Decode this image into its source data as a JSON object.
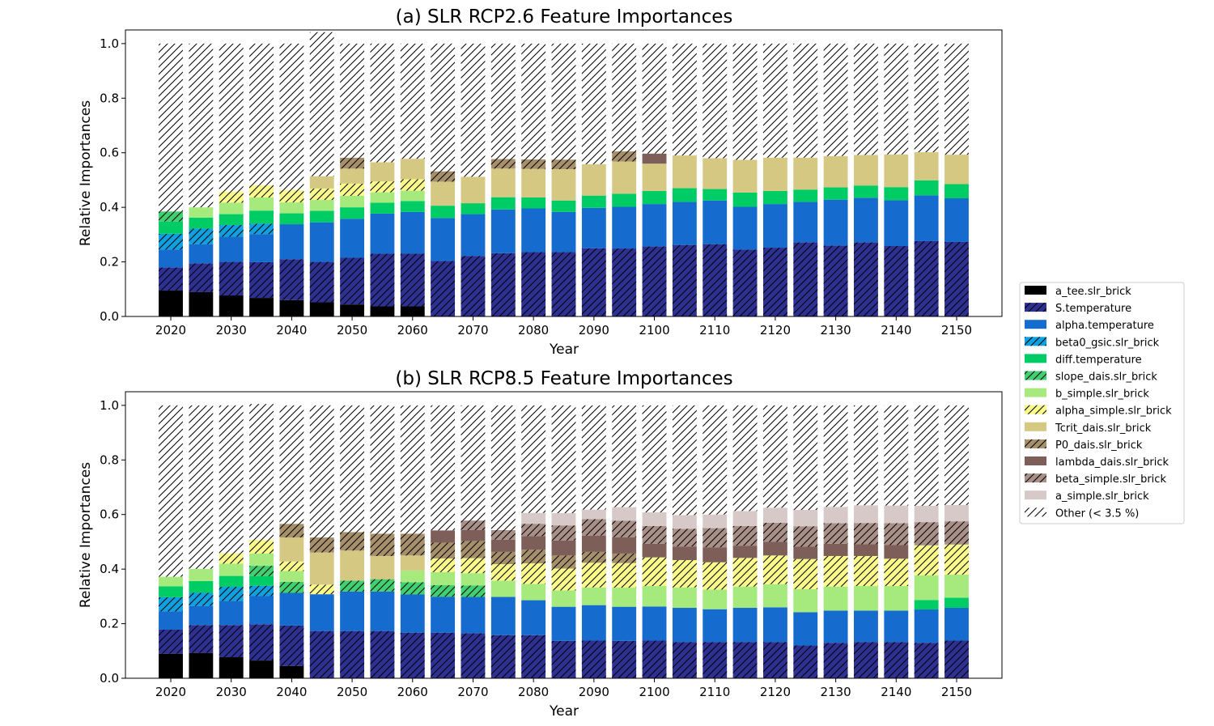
{
  "legend": {
    "placement": "center-right",
    "hatch_color": "#000000",
    "entries": [
      {
        "key": "a_tee",
        "label": "a_tee.slr_brick",
        "color": "#000000",
        "hatch": false
      },
      {
        "key": "S_temp",
        "label": "S.temperature",
        "color": "#2e3192",
        "hatch": true
      },
      {
        "key": "alpha_temp",
        "label": "alpha.temperature",
        "color": "#166cce",
        "hatch": false
      },
      {
        "key": "beta0_gsic",
        "label": "beta0_gsic.slr_brick",
        "color": "#10a0e0",
        "hatch": true
      },
      {
        "key": "diff_temp",
        "label": "diff.temperature",
        "color": "#00cc66",
        "hatch": false
      },
      {
        "key": "slope_dais",
        "label": "slope_dais.slr_brick",
        "color": "#40d070",
        "hatch": true
      },
      {
        "key": "b_simple",
        "label": "b_simple.slr_brick",
        "color": "#a6ea7e",
        "hatch": false
      },
      {
        "key": "alpha_simple",
        "label": "alpha_simple.slr_brick",
        "color": "#fbfb8a",
        "hatch": true
      },
      {
        "key": "Tcrit_dais",
        "label": "Tcrit_dais.slr_brick",
        "color": "#d4c882",
        "hatch": false
      },
      {
        "key": "P0_dais",
        "label": "P0_dais.slr_brick",
        "color": "#a6906a",
        "hatch": true
      },
      {
        "key": "lambda_dais",
        "label": "lambda_dais.slr_brick",
        "color": "#7e5e58",
        "hatch": false
      },
      {
        "key": "beta_simple",
        "label": "beta_simple.slr_brick",
        "color": "#a89088",
        "hatch": true
      },
      {
        "key": "a_simple",
        "label": "a_simple.slr_brick",
        "color": "#d6c9c8",
        "hatch": false
      },
      {
        "key": "other",
        "label": "Other (< 3.5 %)",
        "color": "#ffffff",
        "hatch": true
      }
    ]
  },
  "chart_data": [
    {
      "type": "bar",
      "stacked": true,
      "title": "(a) SLR RCP2.6 Feature Importances",
      "xlabel": "Year",
      "ylabel": "Relative Importances",
      "ylim": [
        0,
        1.05
      ],
      "xlim": [
        2012.5,
        2157.5
      ],
      "yticks": [
        0.0,
        0.2,
        0.4,
        0.6,
        0.8,
        1.0
      ],
      "ytick_labels": [
        "0.0",
        "0.2",
        "0.4",
        "0.6",
        "0.8",
        "1.0"
      ],
      "xticks": [
        2020,
        2030,
        2040,
        2050,
        2060,
        2070,
        2080,
        2090,
        2100,
        2110,
        2120,
        2130,
        2140,
        2150
      ],
      "xtick_labels": [
        "2020",
        "2030",
        "2040",
        "2050",
        "2060",
        "2070",
        "2080",
        "2090",
        "2100",
        "2110",
        "2120",
        "2130",
        "2140",
        "2150"
      ],
      "bar_width_years": 4,
      "grid": false,
      "categories": [
        2020,
        2025,
        2030,
        2035,
        2040,
        2045,
        2050,
        2055,
        2060,
        2065,
        2070,
        2075,
        2080,
        2085,
        2090,
        2095,
        2100,
        2105,
        2110,
        2115,
        2120,
        2125,
        2130,
        2135,
        2140,
        2145,
        2150
      ],
      "series": [
        {
          "key": "a_tee",
          "values": [
            0.095,
            0.09,
            0.077,
            0.068,
            0.06,
            0.052,
            0.044,
            0.037,
            0.037,
            0,
            0,
            0,
            0,
            0,
            0,
            0,
            0,
            0,
            0,
            0,
            0,
            0,
            0,
            0,
            0,
            0,
            0
          ]
        },
        {
          "key": "S_temp",
          "values": [
            0.085,
            0.105,
            0.123,
            0.131,
            0.15,
            0.148,
            0.171,
            0.193,
            0.193,
            0.203,
            0.222,
            0.232,
            0.236,
            0.236,
            0.25,
            0.249,
            0.257,
            0.262,
            0.265,
            0.245,
            0.252,
            0.272,
            0.26,
            0.272,
            0.258,
            0.276,
            0.273
          ]
        },
        {
          "key": "alpha_temp",
          "values": [
            0.065,
            0.07,
            0.092,
            0.103,
            0.128,
            0.145,
            0.143,
            0.147,
            0.153,
            0.158,
            0.153,
            0.16,
            0.16,
            0.147,
            0.148,
            0.153,
            0.155,
            0.158,
            0.16,
            0.157,
            0.16,
            0.148,
            0.168,
            0.163,
            0.168,
            0.168,
            0.16
          ]
        },
        {
          "key": "beta0_gsic",
          "values": [
            0.058,
            0.057,
            0.043,
            0.038,
            0,
            0,
            0,
            0,
            0,
            0,
            0,
            0,
            0,
            0,
            0,
            0,
            0,
            0,
            0,
            0,
            0,
            0,
            0,
            0,
            0,
            0,
            0
          ]
        },
        {
          "key": "diff_temp",
          "values": [
            0.045,
            0.04,
            0.04,
            0.048,
            0.04,
            0.042,
            0.042,
            0.04,
            0.04,
            0.045,
            0.04,
            0.045,
            0.04,
            0.042,
            0.045,
            0.048,
            0.048,
            0.05,
            0.042,
            0.052,
            0.048,
            0.045,
            0.045,
            0.045,
            0.048,
            0.055,
            0.052
          ]
        },
        {
          "key": "slope_dais",
          "values": [
            0.037,
            0,
            0,
            0,
            0,
            0,
            0,
            0,
            0,
            0,
            0,
            0,
            0,
            0,
            0,
            0,
            0,
            0,
            0,
            0,
            0,
            0,
            0,
            0,
            0,
            0,
            0
          ]
        },
        {
          "key": "b_simple",
          "values": [
            0,
            0.038,
            0.042,
            0.048,
            0.04,
            0.04,
            0.042,
            0.038,
            0.038,
            0,
            0,
            0,
            0,
            0,
            0,
            0,
            0,
            0,
            0,
            0,
            0,
            0,
            0,
            0,
            0,
            0,
            0
          ]
        },
        {
          "key": "alpha_simple",
          "values": [
            0,
            0,
            0.04,
            0.045,
            0.045,
            0.042,
            0.045,
            0.04,
            0.042,
            0,
            0,
            0,
            0,
            0,
            0,
            0,
            0,
            0,
            0,
            0,
            0,
            0,
            0,
            0,
            0,
            0,
            0
          ]
        },
        {
          "key": "Tcrit_dais",
          "values": [
            0,
            0,
            0,
            0,
            0,
            0.045,
            0.055,
            0.07,
            0.075,
            0.088,
            0.097,
            0.105,
            0.105,
            0.115,
            0.115,
            0.118,
            0.1,
            0.12,
            0.113,
            0.12,
            0.122,
            0.117,
            0.115,
            0.112,
            0.12,
            0.103,
            0.108
          ]
        },
        {
          "key": "P0_dais",
          "values": [
            0,
            0,
            0,
            0,
            0,
            0,
            0.04,
            0,
            0,
            0.038,
            0,
            0.035,
            0.035,
            0.035,
            0,
            0.037,
            0,
            0,
            0,
            0,
            0,
            0,
            0,
            0,
            0,
            0,
            0
          ]
        },
        {
          "key": "lambda_dais",
          "values": [
            0,
            0,
            0,
            0,
            0,
            0,
            0,
            0,
            0,
            0,
            0,
            0,
            0,
            0,
            0,
            0,
            0.037,
            0,
            0,
            0,
            0,
            0,
            0,
            0,
            0,
            0,
            0
          ]
        },
        {
          "key": "other",
          "values": [
            0.615,
            0.6,
            0.543,
            0.519,
            0.537,
            0.528,
            0.418,
            0.435,
            0.422,
            0.468,
            0.488,
            0.423,
            0.424,
            0.425,
            0.442,
            0.395,
            0.403,
            0.41,
            0.42,
            0.426,
            0.418,
            0.418,
            0.412,
            0.408,
            0.406,
            0.398,
            0.407
          ]
        }
      ]
    },
    {
      "type": "bar",
      "stacked": true,
      "title": "(b) SLR RCP8.5 Feature Importances",
      "xlabel": "Year",
      "ylabel": "Relative Importances",
      "ylim": [
        0,
        1.05
      ],
      "xlim": [
        2012.5,
        2157.5
      ],
      "yticks": [
        0.0,
        0.2,
        0.4,
        0.6,
        0.8,
        1.0
      ],
      "ytick_labels": [
        "0.0",
        "0.2",
        "0.4",
        "0.6",
        "0.8",
        "1.0"
      ],
      "xticks": [
        2020,
        2030,
        2040,
        2050,
        2060,
        2070,
        2080,
        2090,
        2100,
        2110,
        2120,
        2130,
        2140,
        2150
      ],
      "xtick_labels": [
        "2020",
        "2030",
        "2040",
        "2050",
        "2060",
        "2070",
        "2080",
        "2090",
        "2100",
        "2110",
        "2120",
        "2130",
        "2140",
        "2150"
      ],
      "bar_width_years": 4,
      "grid": false,
      "categories": [
        2020,
        2025,
        2030,
        2035,
        2040,
        2045,
        2050,
        2055,
        2060,
        2065,
        2070,
        2075,
        2080,
        2085,
        2090,
        2095,
        2100,
        2105,
        2110,
        2115,
        2120,
        2125,
        2130,
        2135,
        2140,
        2145,
        2150
      ],
      "series": [
        {
          "key": "a_tee",
          "values": [
            0.09,
            0.093,
            0.077,
            0.065,
            0.045,
            0,
            0,
            0,
            0,
            0,
            0,
            0,
            0,
            0,
            0,
            0,
            0,
            0,
            0,
            0,
            0,
            0,
            0,
            0,
            0,
            0,
            0
          ]
        },
        {
          "key": "S_temp",
          "values": [
            0.088,
            0.102,
            0.118,
            0.133,
            0.148,
            0.173,
            0.173,
            0.173,
            0.167,
            0.167,
            0.165,
            0.158,
            0.158,
            0.137,
            0.138,
            0.137,
            0.138,
            0.133,
            0.133,
            0.133,
            0.133,
            0.12,
            0.13,
            0.133,
            0.133,
            0.13,
            0.138
          ]
        },
        {
          "key": "alpha_temp",
          "values": [
            0.067,
            0.07,
            0.088,
            0.103,
            0.12,
            0.135,
            0.145,
            0.145,
            0.14,
            0.132,
            0.133,
            0.14,
            0.128,
            0.125,
            0.13,
            0.125,
            0.125,
            0.125,
            0.12,
            0.125,
            0.127,
            0.122,
            0.118,
            0.115,
            0.115,
            0.122,
            0.12
          ]
        },
        {
          "key": "beta0_gsic",
          "values": [
            0.052,
            0.048,
            0.052,
            0.038,
            0,
            0,
            0,
            0,
            0,
            0,
            0,
            0,
            0,
            0,
            0,
            0,
            0,
            0,
            0,
            0,
            0,
            0,
            0,
            0,
            0,
            0,
            0
          ]
        },
        {
          "key": "diff_temp",
          "values": [
            0.04,
            0.043,
            0.04,
            0.035,
            0,
            0,
            0,
            0,
            0,
            0,
            0,
            0,
            0,
            0,
            0,
            0,
            0,
            0,
            0,
            0,
            0,
            0,
            0,
            0,
            0,
            0.035,
            0.037
          ]
        },
        {
          "key": "slope_dais",
          "values": [
            0,
            0,
            0,
            0.038,
            0.04,
            0,
            0.04,
            0.045,
            0.045,
            0.042,
            0.042,
            0,
            0,
            0,
            0,
            0,
            0,
            0,
            0,
            0,
            0,
            0,
            0,
            0,
            0,
            0,
            0
          ]
        },
        {
          "key": "b_simple",
          "values": [
            0.035,
            0.045,
            0.045,
            0.045,
            0.04,
            0,
            0,
            0,
            0.043,
            0.048,
            0.045,
            0.06,
            0.06,
            0.06,
            0.065,
            0.07,
            0.075,
            0.075,
            0.072,
            0.078,
            0.085,
            0.085,
            0.088,
            0.09,
            0.09,
            0.09,
            0.085
          ]
        },
        {
          "key": "alpha_simple",
          "values": [
            0,
            0,
            0.038,
            0.05,
            0.035,
            0.035,
            0,
            0,
            0,
            0.05,
            0.055,
            0.06,
            0.075,
            0.08,
            0.09,
            0.09,
            0.105,
            0.1,
            0.1,
            0.105,
            0.105,
            0.11,
            0.112,
            0.11,
            0.1,
            0.11,
            0.11
          ]
        },
        {
          "key": "Tcrit_dais",
          "values": [
            0,
            0,
            0,
            0,
            0.088,
            0.118,
            0.11,
            0.085,
            0.055,
            0,
            0,
            0,
            0,
            0,
            0,
            0,
            0,
            0,
            0,
            0,
            0,
            0,
            0,
            0,
            0,
            0,
            0
          ]
        },
        {
          "key": "P0_dais",
          "values": [
            0,
            0,
            0,
            0,
            0.05,
            0.055,
            0.068,
            0.082,
            0.08,
            0.058,
            0.063,
            0.045,
            0.05,
            0.048,
            0.04,
            0.035,
            0,
            0,
            0,
            0,
            0,
            0,
            0,
            0,
            0,
            0,
            0
          ]
        },
        {
          "key": "lambda_dais",
          "values": [
            0,
            0,
            0,
            0,
            0,
            0,
            0,
            0,
            0,
            0.045,
            0.04,
            0.045,
            0.05,
            0.055,
            0.06,
            0.06,
            0.05,
            0.05,
            0.055,
            0.045,
            0.05,
            0.045,
            0.045,
            0.043,
            0.05,
            0,
            0
          ]
        },
        {
          "key": "beta_simple",
          "values": [
            0,
            0,
            0,
            0,
            0,
            0,
            0,
            0,
            0,
            0,
            0.035,
            0.035,
            0.045,
            0.055,
            0.06,
            0.06,
            0.065,
            0.065,
            0.07,
            0.072,
            0.07,
            0.075,
            0.075,
            0.078,
            0.08,
            0.085,
            0.085
          ]
        },
        {
          "key": "a_simple",
          "values": [
            0,
            0,
            0,
            0,
            0,
            0,
            0,
            0,
            0,
            0,
            0,
            0,
            0.04,
            0.045,
            0.035,
            0.05,
            0.05,
            0.05,
            0.05,
            0.055,
            0.055,
            0.06,
            0.06,
            0.065,
            0.065,
            0.06,
            0.06
          ]
        },
        {
          "key": "other",
          "values": [
            0.628,
            0.599,
            0.542,
            0.498,
            0.434,
            0.484,
            0.464,
            0.47,
            0.47,
            0.458,
            0.422,
            0.457,
            0.394,
            0.395,
            0.382,
            0.373,
            0.392,
            0.402,
            0.4,
            0.387,
            0.375,
            0.383,
            0.372,
            0.366,
            0.367,
            0.368,
            0.365
          ]
        }
      ]
    }
  ]
}
